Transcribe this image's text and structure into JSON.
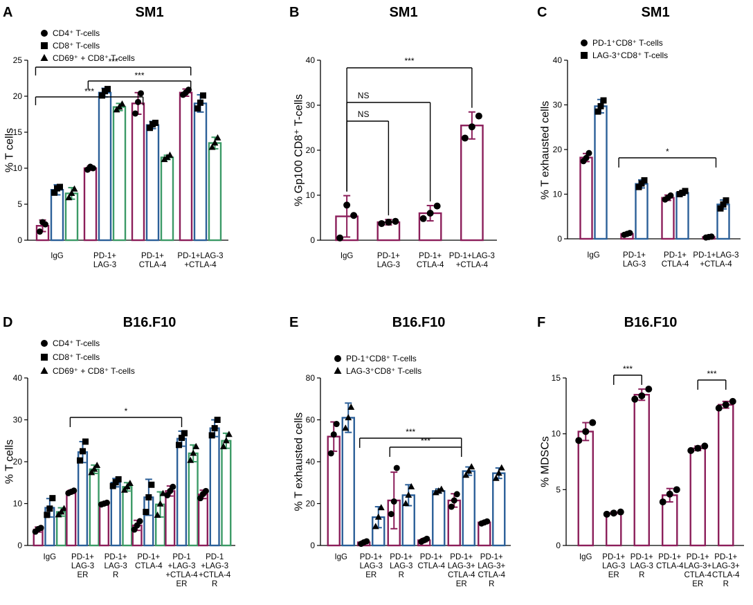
{
  "chart_data": [
    {
      "type": "bar",
      "panel": "A",
      "title": "SM1",
      "ylabel": "% T cells",
      "ylim": [
        0,
        25
      ],
      "yticks": [
        0,
        5,
        10,
        15,
        20,
        25
      ],
      "categories": [
        "IgG",
        "PD-1+\nLAG-3",
        "PD-1+\nCTLA-4",
        "PD-1+LAG-3\n+CTLA-4"
      ],
      "series": [
        {
          "name": "CD4⁺ T-cells",
          "color": "#8b1e5a",
          "marker": "circle",
          "values": [
            2,
            10,
            19,
            20.5
          ],
          "errors": [
            0.8,
            0.3,
            1.5,
            0.5
          ],
          "points": [
            [
              1.2,
              2.5,
              2.2
            ],
            [
              9.8,
              10.2,
              10
            ],
            [
              17.6,
              19.2,
              20.4
            ],
            [
              20.2,
              20.5,
              20.9
            ]
          ]
        },
        {
          "name": "CD8⁺ T-cells",
          "color": "#2b5f98",
          "marker": "square",
          "values": [
            7,
            20.5,
            16,
            19
          ],
          "errors": [
            0.7,
            0.6,
            0.5,
            1.2
          ],
          "points": [
            [
              6.6,
              7.2,
              7.4
            ],
            [
              20.1,
              20.7,
              21
            ],
            [
              15.6,
              16.1,
              16.3
            ],
            [
              18.3,
              19.1,
              20.1
            ]
          ]
        },
        {
          "name": "CD69⁺ + CD8⁺ T-cells",
          "color": "#3b9a66",
          "marker": "triangle",
          "values": [
            6.5,
            18.5,
            11.5,
            13.5
          ],
          "errors": [
            0.8,
            0.5,
            0.3,
            0.8
          ],
          "points": [
            [
              5.9,
              6.5,
              7.1
            ],
            [
              18.1,
              18.5,
              18.9
            ],
            [
              11.2,
              11.5,
              11.8
            ],
            [
              12.9,
              13.5,
              14.2
            ]
          ]
        }
      ],
      "significance": [
        {
          "from": 3,
          "to": 0,
          "label": "***"
        },
        {
          "from": 3,
          "to": 1,
          "label": "***"
        },
        {
          "from": 2,
          "to": 0,
          "label": "***"
        }
      ]
    },
    {
      "type": "bar",
      "panel": "B",
      "title": "SM1",
      "ylabel": "% Gp100 CD8⁺ T-cells",
      "ylim": [
        0,
        40
      ],
      "yticks": [
        0,
        10,
        20,
        30,
        40
      ],
      "categories": [
        "IgG",
        "PD-1+\nLAG-3",
        "PD-1+\nCTLA-4",
        "PD-1+LAG-3\n+CTLA-4"
      ],
      "series": [
        {
          "name": "Gp100 CD8⁺ T-cells",
          "color": "#8b1e5a",
          "marker": "circle",
          "values": [
            5.3,
            4,
            6,
            25.5
          ],
          "errors": [
            4.6,
            0.6,
            1.7,
            3
          ],
          "points": [
            [
              0.5,
              7.8,
              5.5
            ],
            [
              3.7,
              4,
              4.2
            ],
            [
              4.8,
              6,
              7.6
            ],
            [
              22.7,
              25.2,
              27.6
            ]
          ]
        }
      ],
      "significance": [
        {
          "from": 0,
          "to": 1,
          "label": "NS"
        },
        {
          "from": 0,
          "to": 2,
          "label": "NS"
        },
        {
          "from": 0,
          "to": 3,
          "label": "***"
        }
      ]
    },
    {
      "type": "bar",
      "panel": "C",
      "title": "SM1",
      "ylabel": "% T exhausted cells",
      "ylim": [
        0,
        40
      ],
      "yticks": [
        0,
        10,
        20,
        30,
        40
      ],
      "categories": [
        "IgG",
        "PD-1+\nLAG-3",
        "PD-1+\nCTLA-4",
        "PD-1+LAG-3\n+CTLA-4"
      ],
      "series": [
        {
          "name": "PD-1⁺CD8⁺ T-cells",
          "color": "#8b1e5a",
          "marker": "circle",
          "values": [
            18.2,
            1.1,
            9.2,
            0.4
          ],
          "errors": [
            0.9,
            0.3,
            0.6,
            0.2
          ],
          "points": [
            [
              17.4,
              18.1,
              19.2
            ],
            [
              0.9,
              1.1,
              1.3
            ],
            [
              8.8,
              9.2,
              9.7
            ],
            [
              0.3,
              0.4,
              0.5
            ]
          ]
        },
        {
          "name": "LAG-3⁺CD8⁺ T-cells",
          "color": "#2b5f98",
          "marker": "square",
          "values": [
            29.7,
            12.3,
            10.3,
            7.7
          ],
          "errors": [
            1.5,
            0.9,
            0.4,
            1
          ],
          "points": [
            [
              28.5,
              29.7,
              31
            ],
            [
              11.6,
              12.4,
              13.1
            ],
            [
              10,
              10.3,
              10.7
            ],
            [
              6.8,
              7.7,
              8.6
            ]
          ]
        }
      ],
      "significance": [
        {
          "from": 1,
          "to": 3,
          "label": "*"
        }
      ]
    },
    {
      "type": "bar",
      "panel": "D",
      "title": "B16.F10",
      "ylabel": "% T cells",
      "ylim": [
        0,
        40
      ],
      "yticks": [
        0,
        10,
        20,
        30,
        40
      ],
      "categories": [
        "IgG",
        "PD-1+\nLAG-3\nER",
        "PD-1+\nLAG-3\nR",
        "PD-1+\nCTLA-4",
        "PD-1\n+LAG-3\n+CTLA-4\nER",
        "PD-1\n+LAG-3\n+CTLA-4\nR"
      ],
      "series": [
        {
          "name": "CD4⁺ T-cells",
          "color": "#8b1e5a",
          "marker": "circle",
          "values": [
            3.8,
            12.8,
            10,
            4.8,
            13,
            12.2
          ],
          "errors": [
            0.6,
            0.4,
            0.3,
            1.2,
            1.2,
            1
          ],
          "points": [
            [
              3.3,
              3.9,
              4.2
            ],
            [
              12.5,
              12.8,
              13.1
            ],
            [
              9.8,
              10,
              10.2
            ],
            [
              3.8,
              4.8,
              5.8
            ],
            [
              12,
              13,
              14
            ],
            [
              11.3,
              12.3,
              13
            ]
          ]
        },
        {
          "name": "CD8⁺ T-cells",
          "color": "#2b5f98",
          "marker": "square",
          "values": [
            9,
            22.3,
            15,
            11.5,
            25.5,
            28
          ],
          "errors": [
            2.2,
            2.5,
            1,
            4.3,
            1.8,
            2
          ],
          "points": [
            [
              7.3,
              8.8,
              11.3
            ],
            [
              20.3,
              22.5,
              24.8
            ],
            [
              14.2,
              15.1,
              15.8
            ],
            [
              8,
              11.5,
              14.5
            ],
            [
              24,
              25.7,
              26.8
            ],
            [
              26.3,
              28,
              30
            ]
          ]
        },
        {
          "name": "CD69⁺ + CD8⁺ T-cells",
          "color": "#3b9a66",
          "marker": "triangle",
          "values": [
            8,
            18.2,
            14,
            9.8,
            22,
            25
          ],
          "errors": [
            1,
            1,
            1,
            3,
            2,
            1.8
          ],
          "points": [
            [
              7.3,
              8,
              8.8
            ],
            [
              17.4,
              18.2,
              19.1
            ],
            [
              13.2,
              14,
              14.8
            ],
            [
              7.2,
              9.9,
              12.4
            ],
            [
              20.3,
              22,
              23.6
            ],
            [
              23.6,
              25,
              26.5
            ]
          ]
        }
      ],
      "significance": [
        {
          "from": 1,
          "to": 4,
          "label": "*"
        }
      ]
    },
    {
      "type": "bar",
      "panel": "E",
      "title": "B16.F10",
      "ylabel": "% T exhausted cells",
      "ylim": [
        0,
        80
      ],
      "yticks": [
        0,
        20,
        40,
        60,
        80
      ],
      "categories": [
        "IgG",
        "PD-1+\nLAG-3\nER",
        "PD-1+\nLAG-3\nR",
        "PD-1+\nCTLA-4",
        "PD-1+\nLAG-3+\nCTLA-4\nER",
        "PD-1+\nLAG-3+\nCTLA-4\nR"
      ],
      "series": [
        {
          "name": "PD-1⁺CD8⁺ T-cells",
          "color": "#8b1e5a",
          "marker": "circle",
          "values": [
            52,
            1.5,
            21.5,
            2.5,
            21.5,
            11
          ],
          "errors": [
            7,
            0.5,
            13.5,
            0.8,
            3.2,
            0.5
          ],
          "points": [
            [
              44,
              53,
              58
            ],
            [
              0.8,
              1.5,
              2
            ],
            [
              15,
              21,
              37
            ],
            [
              1.8,
              2.5,
              3.2
            ],
            [
              18.5,
              21.5,
              24.5
            ],
            [
              10.5,
              11,
              11.5
            ]
          ]
        },
        {
          "name": "LAG-3⁺CD8⁺ T-cells",
          "color": "#2b5f98",
          "marker": "triangle",
          "values": [
            61,
            13.5,
            24,
            26,
            35.5,
            34.5
          ],
          "errors": [
            7,
            5,
            5,
            1,
            2,
            2.5
          ],
          "points": [
            [
              56,
              61,
              66
            ],
            [
              9,
              13.5,
              18
            ],
            [
              20,
              24,
              28
            ],
            [
              25.2,
              26,
              26.8
            ],
            [
              33.5,
              35.5,
              37.5
            ],
            [
              32,
              34.5,
              37
            ]
          ]
        }
      ],
      "significance": [
        {
          "from": 1,
          "to": 4,
          "label": "***"
        },
        {
          "from": 2,
          "to": 4,
          "label": "***"
        }
      ]
    },
    {
      "type": "bar",
      "panel": "F",
      "title": "B16.F10",
      "ylabel": "% MDSCs",
      "ylim": [
        0,
        15
      ],
      "yticks": [
        0,
        5,
        10,
        15
      ],
      "categories": [
        "IgG",
        "PD-1+\nLAG-3\nER",
        "PD-1+\nLAG-3\nR",
        "PD-1+\nCTLA-4",
        "PD-1+\nLAG-3+\nCTLA-4\nER",
        "PD-1+\nLAG-3+\nCTLA-4\nR"
      ],
      "series": [
        {
          "name": "MDSCs",
          "color": "#8b1e5a",
          "marker": "circle",
          "values": [
            10.2,
            2.9,
            13.5,
            4.5,
            8.7,
            12.6
          ],
          "errors": [
            0.8,
            0.1,
            0.5,
            0.6,
            0.2,
            0.3
          ],
          "points": [
            [
              9.4,
              10.2,
              11
            ],
            [
              2.8,
              2.9,
              3
            ],
            [
              13.1,
              13.4,
              14
            ],
            [
              3.9,
              4.6,
              5
            ],
            [
              8.5,
              8.7,
              8.9
            ],
            [
              12.3,
              12.6,
              12.9
            ]
          ]
        }
      ],
      "significance": [
        {
          "from": 1,
          "to": 2,
          "label": "***"
        },
        {
          "from": 4,
          "to": 5,
          "label": "***"
        }
      ]
    }
  ]
}
